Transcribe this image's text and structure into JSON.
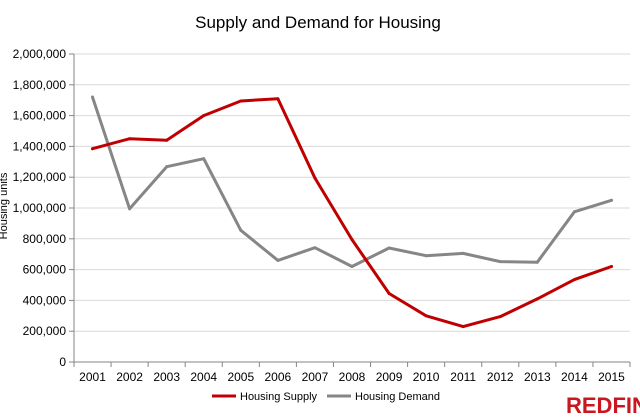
{
  "chart_data": {
    "type": "line",
    "title": "Supply and Demand for Housing",
    "ylabel": "Housing units",
    "xlabel": "",
    "x": [
      "2001",
      "2002",
      "2003",
      "2004",
      "2005",
      "2006",
      "2007",
      "2008",
      "2009",
      "2010",
      "2011",
      "2012",
      "2013",
      "2014",
      "2015"
    ],
    "ylim": [
      0,
      2000000
    ],
    "yticks": [
      0,
      200000,
      400000,
      600000,
      800000,
      1000000,
      1200000,
      1400000,
      1600000,
      1800000,
      2000000
    ],
    "ytick_labels": [
      "0",
      "200,000",
      "400,000",
      "600,000",
      "800,000",
      "1,000,000",
      "1,200,000",
      "1,400,000",
      "1,600,000",
      "1,800,000",
      "2,000,000"
    ],
    "series": [
      {
        "name": "Housing Supply",
        "color": "#c00000",
        "values": [
          1385000,
          1450000,
          1440000,
          1600000,
          1695000,
          1710000,
          1195000,
          795000,
          445000,
          300000,
          230000,
          295000,
          410000,
          535000,
          620000
        ]
      },
      {
        "name": "Housing Demand",
        "color": "#868686",
        "values": [
          1720000,
          995000,
          1268000,
          1320000,
          855000,
          660000,
          742000,
          620000,
          740000,
          690000,
          705000,
          652000,
          648000,
          975000,
          1050000
        ]
      }
    ],
    "grid": true,
    "legend_position": "bottom-center"
  },
  "brand": {
    "name": "REDFIN",
    "color": "#c8171f"
  }
}
